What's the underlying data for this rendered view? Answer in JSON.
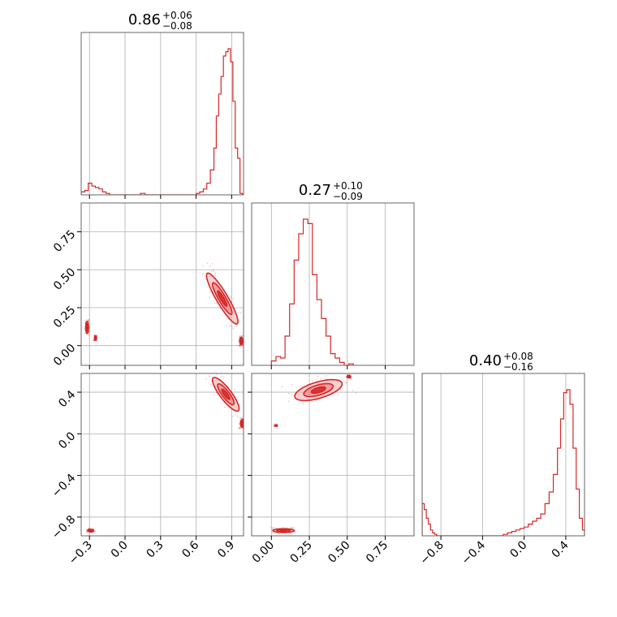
{
  "chart_data": {
    "type": "corner",
    "accent_color": "#d62728",
    "grid": true,
    "parameters": [
      {
        "title_value": "0.86",
        "title_plus": "+0.06",
        "title_minus": "−0.08",
        "range": [
          -0.37,
          1.0
        ],
        "ticks": [
          -0.3,
          0.0,
          0.3,
          0.6,
          0.9
        ],
        "tick_labels": [
          "−0.3",
          "0.0",
          "0.3",
          "0.6",
          "0.9"
        ]
      },
      {
        "title_value": "0.27",
        "title_plus": "+0.10",
        "title_minus": "−0.09",
        "range": [
          -0.13,
          0.94
        ],
        "ticks": [
          0.0,
          0.25,
          0.5,
          0.75
        ],
        "tick_labels": [
          "0.00",
          "0.25",
          "0.50",
          "0.75"
        ]
      },
      {
        "title_value": "0.40",
        "title_plus": "+0.08",
        "title_minus": "−0.16",
        "range": [
          -0.98,
          0.58
        ],
        "ticks": [
          -0.8,
          -0.4,
          0.0,
          0.4
        ],
        "tick_labels": [
          "−0.8",
          "−0.4",
          "0.0",
          "0.4"
        ]
      }
    ],
    "histograms": [
      {
        "param": 0,
        "edges": [
          -0.37,
          -0.34,
          -0.31,
          -0.28,
          -0.25,
          -0.22,
          -0.19,
          -0.16,
          -0.13,
          0.1,
          0.13,
          0.17,
          0.2,
          0.6,
          0.63,
          0.66,
          0.69,
          0.72,
          0.75,
          0.77,
          0.79,
          0.81,
          0.83,
          0.85,
          0.87,
          0.89,
          0.91,
          0.93,
          0.95,
          0.97,
          0.99,
          1.0
        ],
        "counts": [
          0.02,
          0.03,
          0.08,
          0.06,
          0.05,
          0.04,
          0.02,
          0.01,
          0.0,
          0.0,
          0.01,
          0.0,
          0.0,
          0.01,
          0.02,
          0.04,
          0.08,
          0.17,
          0.32,
          0.54,
          0.69,
          0.81,
          0.95,
          0.98,
          1.0,
          0.91,
          0.64,
          0.32,
          0.25,
          0.01,
          0.0
        ]
      },
      {
        "param": 1,
        "edges": [
          0.0,
          0.03,
          0.06,
          0.09,
          0.12,
          0.15,
          0.18,
          0.21,
          0.24,
          0.27,
          0.3,
          0.33,
          0.36,
          0.39,
          0.42,
          0.45,
          0.48,
          0.51,
          0.54
        ],
        "counts": [
          0.03,
          0.06,
          0.05,
          0.2,
          0.42,
          0.72,
          0.9,
          1.0,
          0.97,
          0.62,
          0.45,
          0.32,
          0.2,
          0.08,
          0.05,
          0.02,
          0.0,
          0.01
        ]
      },
      {
        "param": 2,
        "edges": [
          -0.98,
          -0.96,
          -0.94,
          -0.92,
          -0.9,
          -0.88,
          -0.86,
          -0.84,
          -0.82,
          -0.8,
          -0.2,
          -0.16,
          -0.12,
          -0.08,
          -0.04,
          0.0,
          0.04,
          0.08,
          0.12,
          0.16,
          0.2,
          0.24,
          0.28,
          0.32,
          0.35,
          0.38,
          0.41,
          0.44,
          0.47,
          0.5,
          0.53,
          0.56,
          0.58
        ],
        "counts": [
          0.22,
          0.18,
          0.12,
          0.08,
          0.04,
          0.02,
          0.01,
          0.0,
          0.0,
          0.0,
          0.01,
          0.02,
          0.03,
          0.04,
          0.05,
          0.06,
          0.08,
          0.1,
          0.12,
          0.15,
          0.22,
          0.3,
          0.42,
          0.6,
          0.8,
          0.98,
          1.0,
          0.9,
          0.6,
          0.32,
          0.12,
          0.04
        ]
      }
    ],
    "density_2d": [
      {
        "x_param": 0,
        "y_param": 1,
        "cores": [
          {
            "cx": 0.82,
            "cy": 0.31,
            "ux": 0.61,
            "uy": -0.79,
            "major": 0.21,
            "minor": 0.045
          },
          {
            "cx": -0.32,
            "cy": 0.12,
            "ux": 0.0,
            "uy": 1.0,
            "major": 0.04,
            "minor": 0.012
          },
          {
            "cx": -0.25,
            "cy": 0.05,
            "ux": 0.0,
            "uy": 1.0,
            "major": 0.015,
            "minor": 0.008
          },
          {
            "cx": 0.98,
            "cy": 0.03,
            "ux": 0.0,
            "uy": 1.0,
            "major": 0.025,
            "minor": 0.012
          }
        ]
      },
      {
        "x_param": 0,
        "y_param": 2,
        "cores": [
          {
            "cx": 0.85,
            "cy": 0.38,
            "ux": 0.55,
            "uy": -0.84,
            "major": 0.19,
            "minor": 0.05
          },
          {
            "cx": 0.99,
            "cy": 0.1,
            "ux": 0.0,
            "uy": 1.0,
            "major": 0.04,
            "minor": 0.015
          },
          {
            "cx": -0.29,
            "cy": -0.93,
            "ux": 1.0,
            "uy": 0.0,
            "major": 0.025,
            "minor": 0.012
          }
        ]
      },
      {
        "x_param": 1,
        "y_param": 2,
        "cores": [
          {
            "cx": 0.31,
            "cy": 0.42,
            "ux": 0.9,
            "uy": 0.44,
            "major": 0.17,
            "minor": 0.075
          },
          {
            "cx": 0.08,
            "cy": -0.93,
            "ux": 1.0,
            "uy": 0.0,
            "major": 0.07,
            "minor": 0.018
          },
          {
            "cx": 0.51,
            "cy": 0.55,
            "ux": 1.0,
            "uy": 0.0,
            "major": 0.012,
            "minor": 0.01
          },
          {
            "cx": 0.03,
            "cy": 0.08,
            "ux": 1.0,
            "uy": 0.0,
            "major": 0.008,
            "minor": 0.006
          }
        ]
      }
    ]
  }
}
